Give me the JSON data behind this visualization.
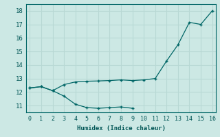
{
  "xlabel": "Humidex (Indice chaleur)",
  "bg_color": "#cce8e4",
  "grid_color": "#b8d8d4",
  "line_color": "#006666",
  "series1_x": [
    0,
    1,
    2,
    3,
    4,
    5,
    6,
    7,
    8,
    9,
    10,
    11,
    12,
    13,
    14,
    15,
    16
  ],
  "series1_y": [
    12.3,
    12.4,
    12.1,
    12.55,
    12.75,
    12.8,
    12.82,
    12.85,
    12.9,
    12.85,
    12.9,
    13.0,
    14.3,
    15.5,
    17.15,
    17.0,
    18.0
  ],
  "series2_x": [
    0,
    1,
    2,
    3,
    4,
    5,
    6,
    7,
    8,
    9
  ],
  "series2_y": [
    12.3,
    12.4,
    12.1,
    11.7,
    11.1,
    10.85,
    10.8,
    10.85,
    10.9,
    10.8
  ],
  "xlim": [
    -0.3,
    16.3
  ],
  "ylim": [
    10.5,
    18.5
  ],
  "yticks": [
    11,
    12,
    13,
    14,
    15,
    16,
    17,
    18
  ],
  "xticks": [
    0,
    1,
    2,
    3,
    4,
    5,
    6,
    7,
    8,
    9,
    10,
    11,
    12,
    13,
    14,
    15,
    16
  ],
  "tick_color": "#005555",
  "xlabel_color": "#005555"
}
